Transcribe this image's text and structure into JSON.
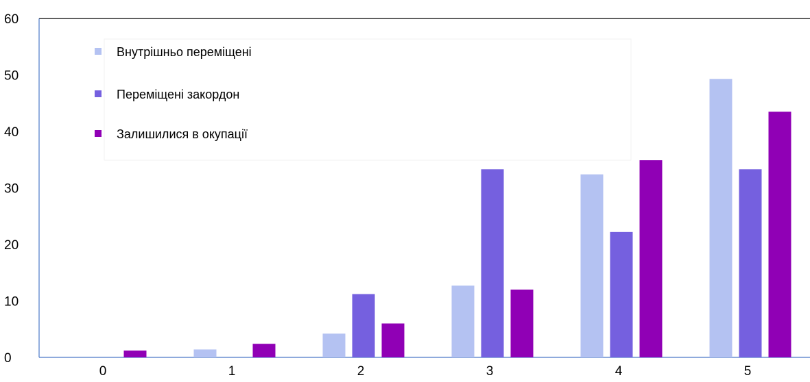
{
  "chart_data": {
    "type": "bar",
    "categories": [
      "0",
      "1",
      "2",
      "3",
      "4",
      "5"
    ],
    "series": [
      {
        "name": "Внутрішньо переміщені",
        "color": "#b4c2f2",
        "values": [
          0,
          1.4,
          4.2,
          12.7,
          32.4,
          49.3
        ]
      },
      {
        "name": "Переміщені закордон",
        "color": "#7560df",
        "values": [
          0,
          0,
          11.2,
          33.3,
          22.2,
          33.3
        ]
      },
      {
        "name": "Залишилися в окупації",
        "color": "#9000b5",
        "values": [
          1.2,
          2.4,
          6.0,
          12.0,
          34.9,
          43.5
        ]
      }
    ],
    "ylim": [
      0,
      60
    ],
    "yticks": [
      "0",
      "10",
      "20",
      "30",
      "40",
      "50",
      "60"
    ],
    "title": "",
    "xlabel": "",
    "ylabel": "",
    "legend_position": "top-left"
  }
}
